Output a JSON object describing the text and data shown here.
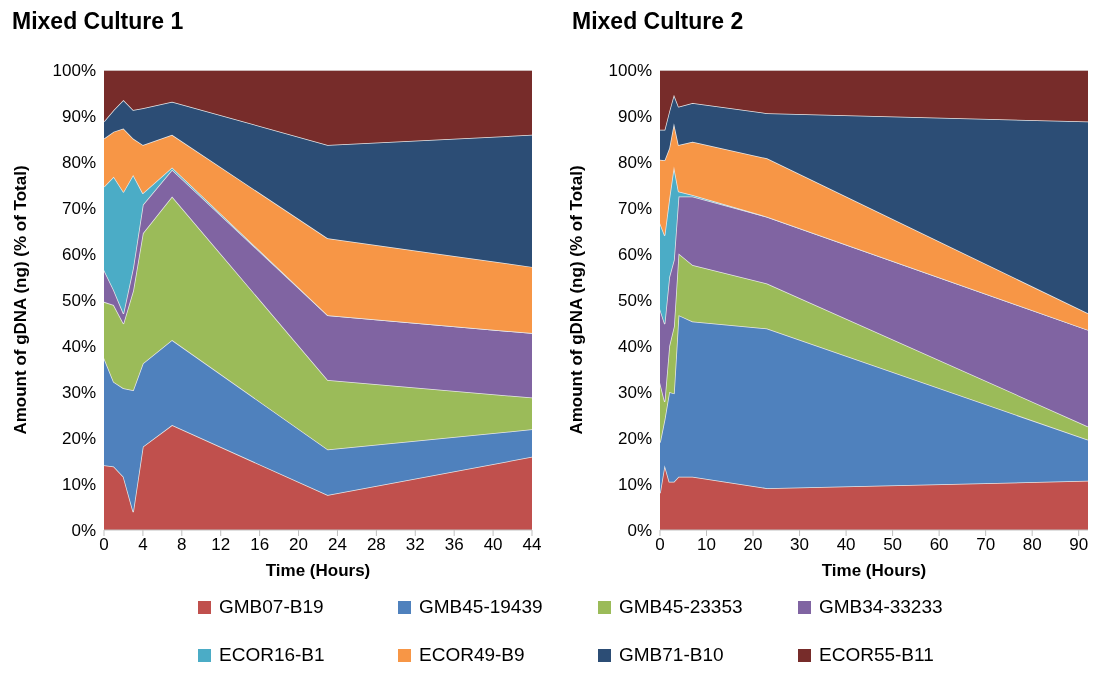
{
  "chart_data": [
    {
      "type": "area",
      "title": "Mixed Culture 1",
      "xlabel": "Time (Hours)",
      "ylabel": "Amount of gDNA (ng) (% of Total)",
      "stacked": true,
      "legend": "bottom",
      "grid": false,
      "x": [
        0,
        1,
        2,
        3,
        4,
        7,
        23,
        44
      ],
      "xlim": [
        0,
        44
      ],
      "xticks": [
        0,
        4,
        8,
        12,
        16,
        20,
        24,
        28,
        32,
        36,
        40,
        44
      ],
      "ylim": [
        0,
        100
      ],
      "yticks": [
        {
          "value": 0,
          "label": "0%"
        },
        {
          "value": 10,
          "label": "10%"
        },
        {
          "value": 20,
          "label": "20%"
        },
        {
          "value": 30,
          "label": "30%"
        },
        {
          "value": 40,
          "label": "40%"
        },
        {
          "value": 50,
          "label": "50%"
        },
        {
          "value": 60,
          "label": "60%"
        },
        {
          "value": 70,
          "label": "70%"
        },
        {
          "value": 80,
          "label": "80%"
        },
        {
          "value": 90,
          "label": "90%"
        },
        {
          "value": 100,
          "label": "100%"
        }
      ],
      "series": [
        {
          "name": "GMB07-B19",
          "color": "#c0504d",
          "values": [
            14.1,
            13.8,
            11.6,
            4.0,
            18.1,
            22.8,
            7.6,
            15.9
          ]
        },
        {
          "name": "GMB45-19439",
          "color": "#4f81bd",
          "values": [
            23.3,
            18.4,
            19.2,
            26.4,
            18.1,
            18.5,
            9.9,
            6.0
          ]
        },
        {
          "name": "GMB45-23353",
          "color": "#9bbb59",
          "values": [
            12.2,
            16.7,
            14.1,
            21.6,
            28.3,
            31.2,
            15.1,
            6.9
          ]
        },
        {
          "name": "GMB34-33233",
          "color": "#8064a2",
          "values": [
            6.9,
            3.3,
            2.2,
            5.0,
            6.2,
            5.8,
            14.1,
            14.0
          ]
        },
        {
          "name": "ECOR16-B1",
          "color": "#4bacc6",
          "values": [
            18.1,
            24.6,
            26.4,
            20.2,
            2.5,
            0.5,
            0,
            0
          ]
        },
        {
          "name": "ECOR49-B9",
          "color": "#f79646",
          "values": [
            10.5,
            9.8,
            13.8,
            7.9,
            10.5,
            7.1,
            16.7,
            14.4
          ]
        },
        {
          "name": "GMB71-B10",
          "color": "#2c4d75",
          "values": [
            3.7,
            4.7,
            6.2,
            6.2,
            8.0,
            7.2,
            20.3,
            28.7
          ]
        },
        {
          "name": "ECOR55-B11",
          "color": "#772c2a",
          "values": [
            11.2,
            8.7,
            6.5,
            8.7,
            8.3,
            6.9,
            16.3,
            14.1
          ]
        }
      ]
    },
    {
      "type": "area",
      "title": "Mixed Culture 2",
      "xlabel": "Time (Hours)",
      "ylabel": "Amount of gDNA (ng) (% of Total)",
      "stacked": true,
      "grid": false,
      "x": [
        0,
        1,
        2,
        3,
        4,
        7,
        23,
        92
      ],
      "xlim": [
        0,
        92
      ],
      "xticks": [
        0,
        10,
        20,
        30,
        40,
        50,
        60,
        70,
        80,
        90
      ],
      "ylim": [
        0,
        100
      ],
      "yticks": [
        {
          "value": 0,
          "label": "0%"
        },
        {
          "value": 10,
          "label": "10%"
        },
        {
          "value": 20,
          "label": "20%"
        },
        {
          "value": 30,
          "label": "30%"
        },
        {
          "value": 40,
          "label": "40%"
        },
        {
          "value": 50,
          "label": "50%"
        },
        {
          "value": 60,
          "label": "60%"
        },
        {
          "value": 70,
          "label": "70%"
        },
        {
          "value": 80,
          "label": "80%"
        },
        {
          "value": 90,
          "label": "90%"
        },
        {
          "value": 100,
          "label": "100%"
        }
      ],
      "series": [
        {
          "color": "#c0504d",
          "values": [
            8,
            14.1,
            10.5,
            10.5,
            11.6,
            11.6,
            9.1,
            10.7
          ]
        },
        {
          "color": "#4f81bd",
          "values": [
            11,
            9.9,
            19.5,
            19.2,
            35.1,
            33.7,
            34.7,
            8.9
          ]
        },
        {
          "color": "#9bbb59",
          "values": [
            13,
            4,
            10,
            14.5,
            13.4,
            12.3,
            9.8,
            2.9
          ]
        },
        {
          "color": "#8064a2",
          "values": [
            16,
            16.9,
            15,
            14.5,
            12.4,
            14.9,
            14.5,
            21
          ]
        },
        {
          "color": "#4bacc6",
          "values": [
            18.7,
            19.2,
            17,
            20.3,
            1.1,
            0.3,
            0,
            0
          ]
        },
        {
          "color": "#f79646",
          "values": [
            13.8,
            16.3,
            11,
            9.4,
            10.1,
            11.6,
            12.7,
            3.6
          ]
        },
        {
          "color": "#2c4d75",
          "values": [
            6.5,
            6.6,
            8,
            6.2,
            8.3,
            8.4,
            9.8,
            41.7
          ]
        },
        {
          "color": "#772c2a",
          "values": [
            13,
            13,
            9,
            5.4,
            8.0,
            7.2,
            9.4,
            11.2
          ]
        }
      ]
    }
  ]
}
